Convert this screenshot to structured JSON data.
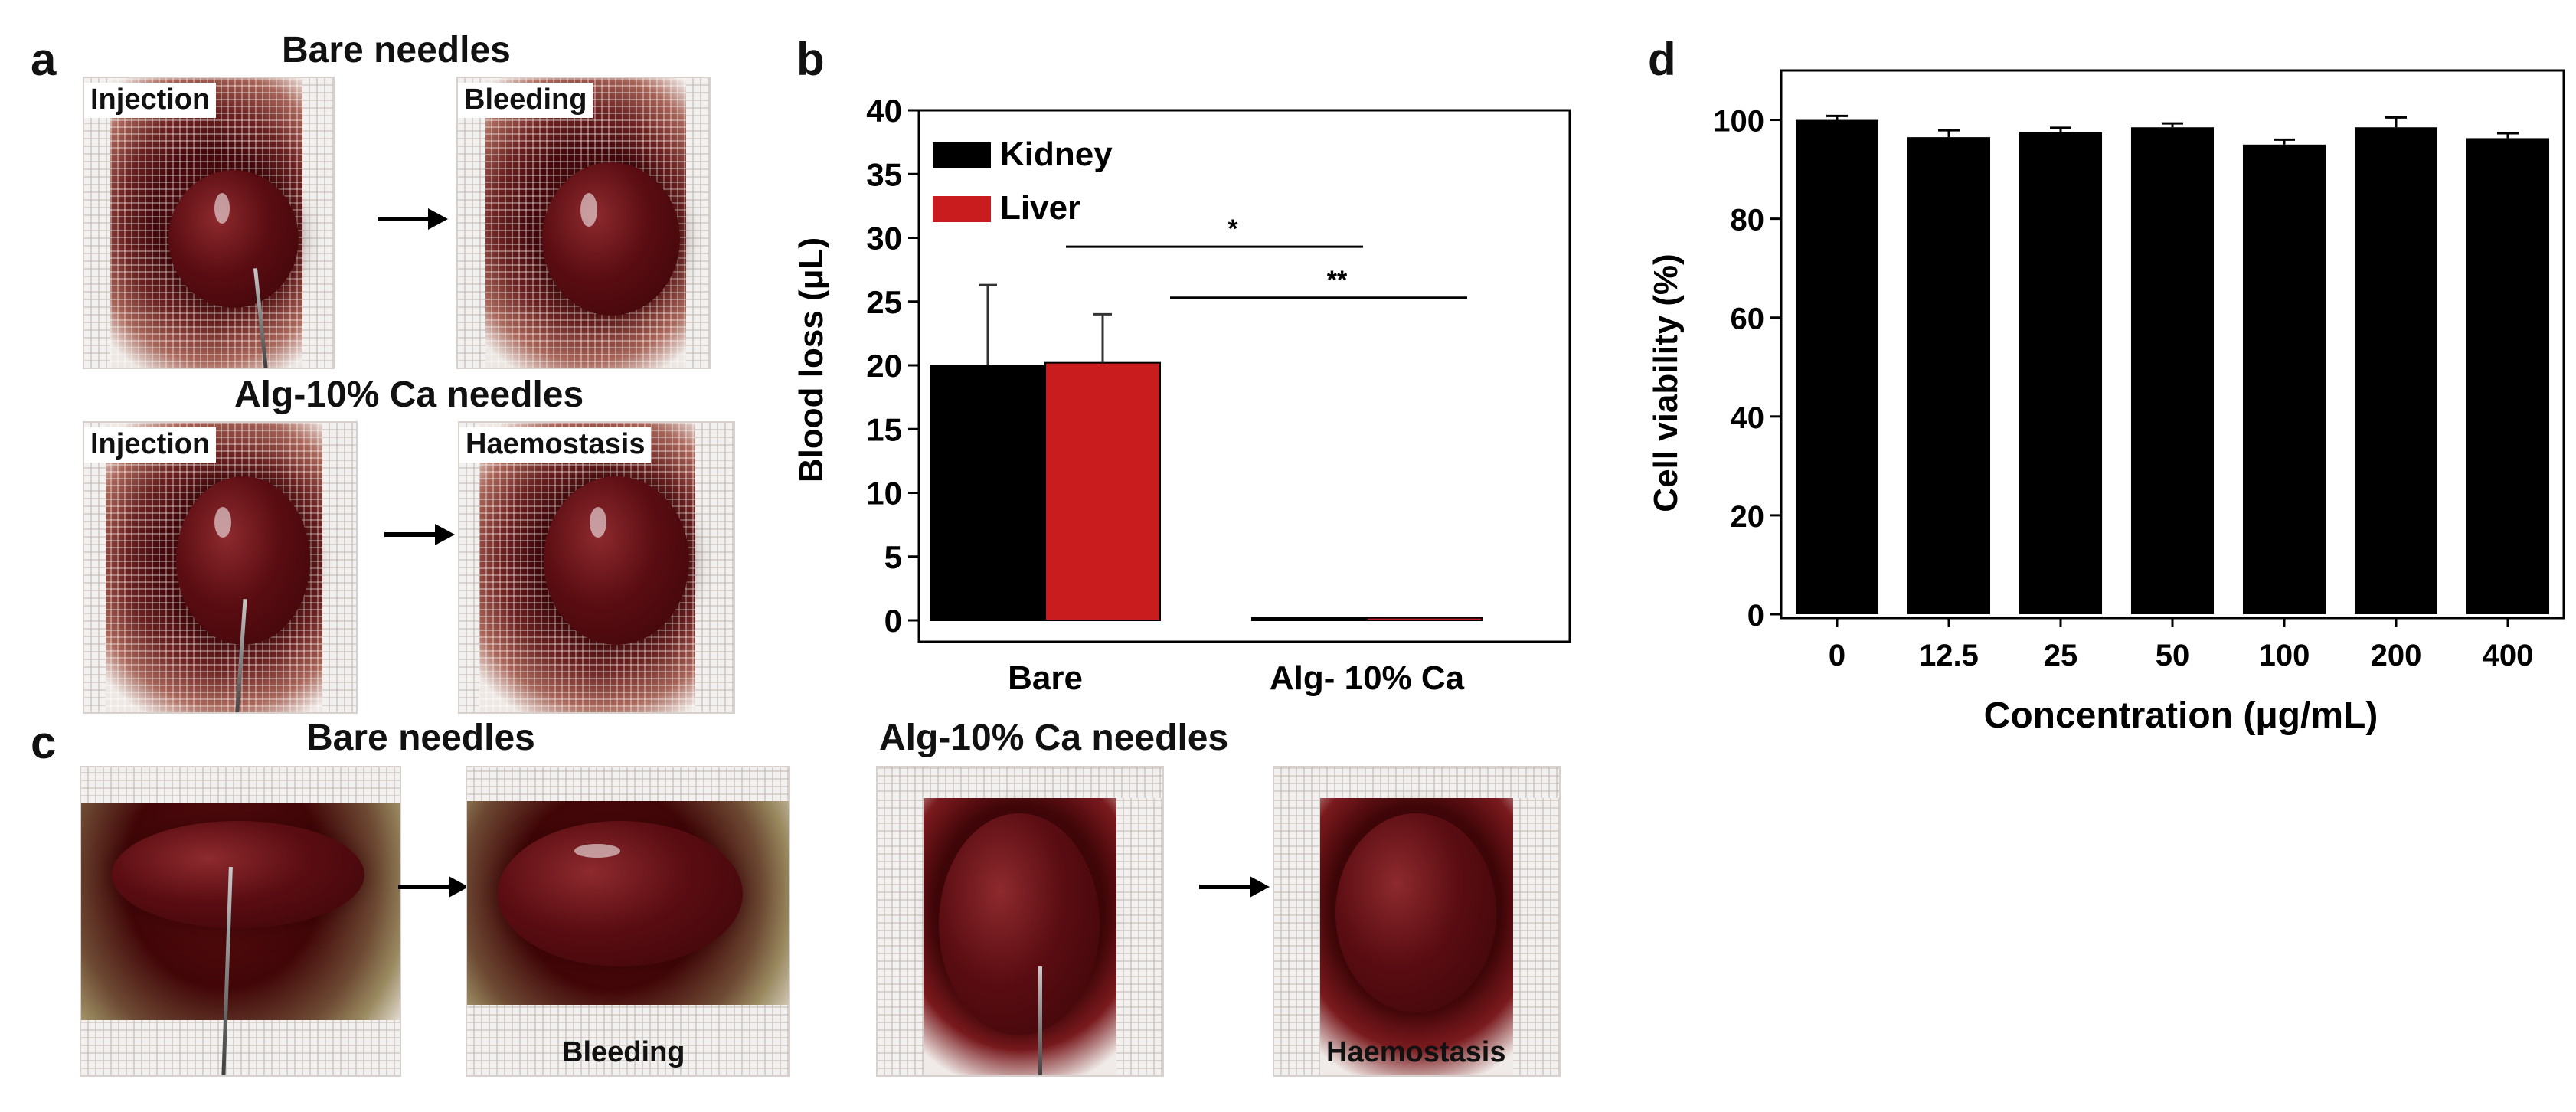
{
  "panel_letters": {
    "a": "a",
    "b": "b",
    "c": "c",
    "d": "d"
  },
  "panel_a": {
    "top_title": "Bare needles",
    "bottom_title": "Alg-10% Ca needles",
    "photo_labels": {
      "top_left": "Injection",
      "top_right": "Bleeding",
      "bottom_left": "Injection",
      "bottom_right": "Haemostasis"
    }
  },
  "panel_c": {
    "left_title": "Bare needles",
    "right_title": "Alg-10% Ca needles",
    "photo_labels": {
      "left_second": "Bleeding",
      "right_second": "Haemostasis"
    }
  },
  "chart_data": [
    {
      "id": "b",
      "type": "bar",
      "ylabel": "Blood loss (μL)",
      "xlabel": "",
      "categories": [
        "Bare",
        "Alg- 10% Ca"
      ],
      "series": [
        {
          "name": "Kidney",
          "color": "#000000",
          "values": [
            20.0,
            0.2
          ],
          "errors": [
            6.3,
            0
          ]
        },
        {
          "name": "Liver",
          "color": "#c81c1e",
          "values": [
            20.2,
            0.2
          ],
          "errors": [
            3.8,
            0
          ]
        }
      ],
      "ylim": [
        0,
        40
      ],
      "yticks": [
        "0",
        "5",
        "10",
        "15",
        "20",
        "25",
        "30",
        "35",
        "40"
      ],
      "legend_position": "top-left",
      "significance": [
        {
          "label": "*",
          "y": 29.3
        },
        {
          "label": "**",
          "y": 25.3
        }
      ]
    },
    {
      "id": "d",
      "type": "bar",
      "ylabel": "Cell viability (%)",
      "xlabel": "Concentration (μg/mL)",
      "categories": [
        "0",
        "12.5",
        "25",
        "50",
        "100",
        "200",
        "400"
      ],
      "values": [
        100,
        96.5,
        97.5,
        98.5,
        95,
        98.5,
        96.3
      ],
      "errors": [
        0.8,
        1.4,
        0.9,
        0.8,
        1.0,
        2.0,
        1.0
      ],
      "color": "#000000",
      "ylim": [
        0,
        110
      ],
      "yticks": [
        "0",
        "20",
        "40",
        "60",
        "80",
        "100"
      ]
    }
  ]
}
